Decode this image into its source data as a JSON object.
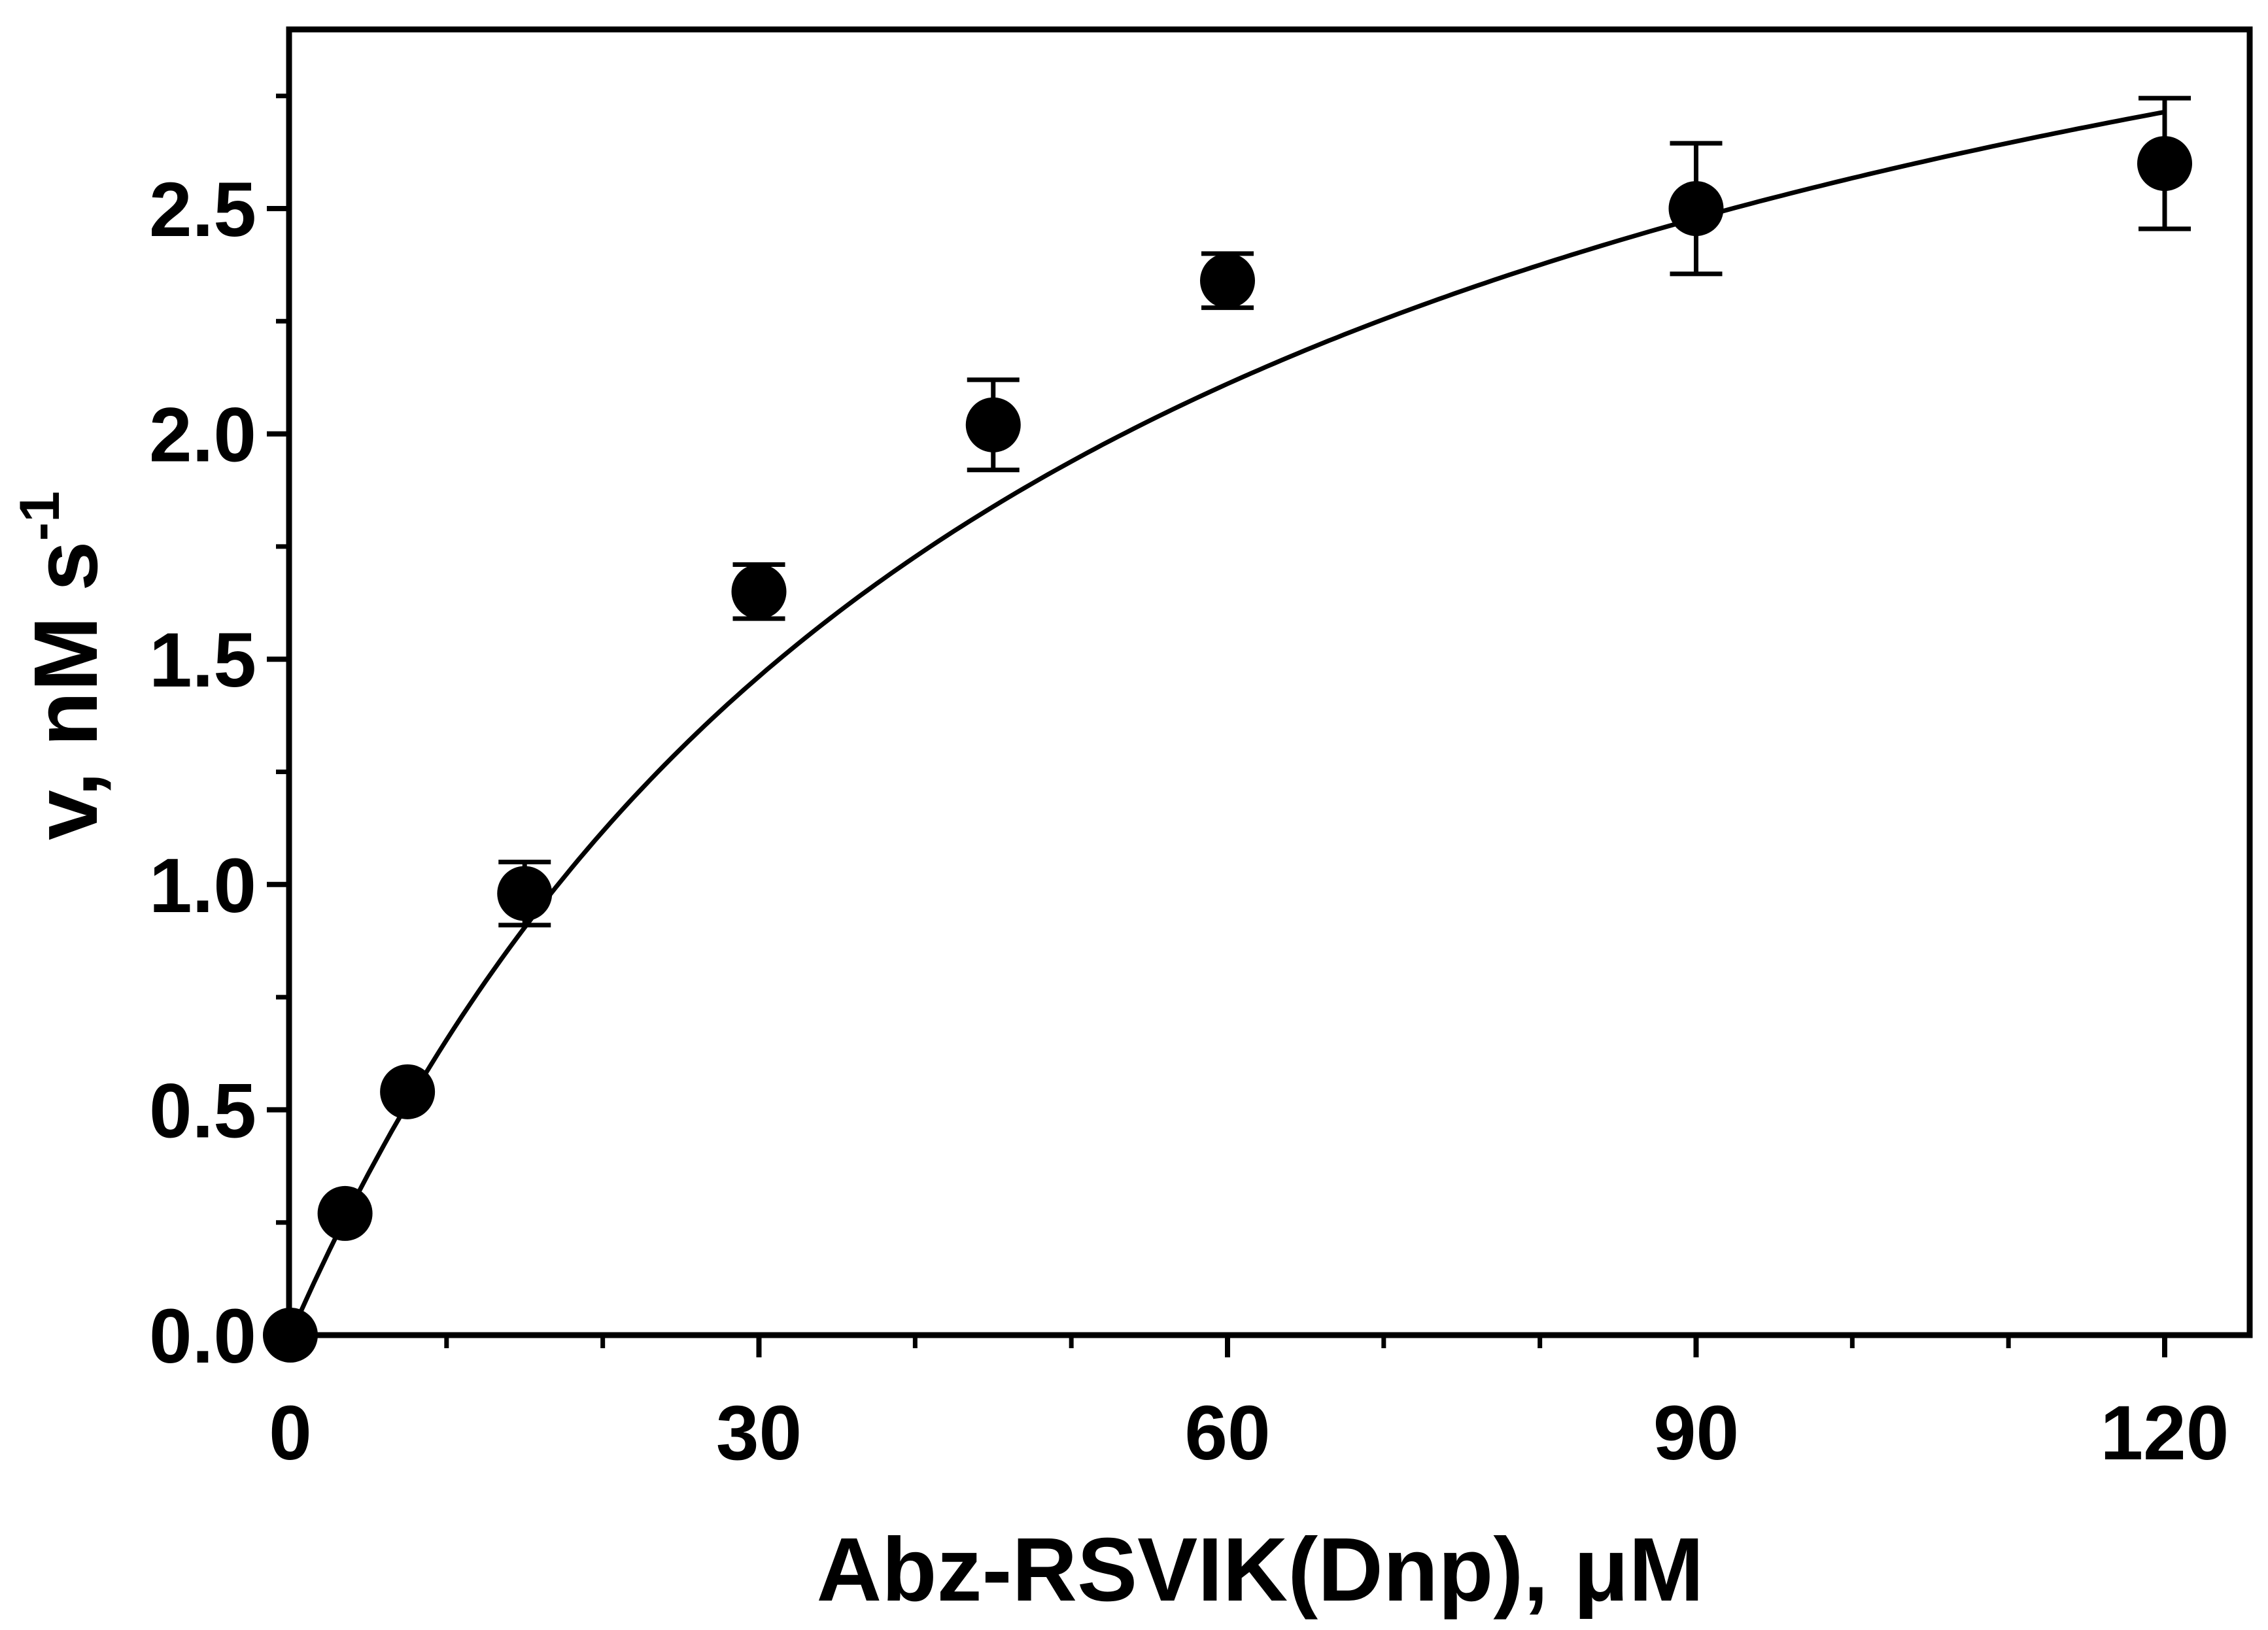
{
  "chart_data": {
    "type": "scatter",
    "title": "",
    "xlabel": "Abz-RSVIK(Dnp), μM",
    "ylabel": {
      "text": "v, nM s",
      "superscript": "-1"
    },
    "xlim": [
      0,
      125
    ],
    "ylim": [
      0,
      2.9
    ],
    "x_ticks": [
      0,
      30,
      60,
      90,
      120
    ],
    "x_tick_labels": [
      "0",
      "30",
      "60",
      "90",
      "120"
    ],
    "x_minor_ticks": [
      10,
      20,
      40,
      50,
      70,
      80,
      100,
      110
    ],
    "y_ticks": [
      0.0,
      0.5,
      1.0,
      1.5,
      2.0,
      2.5
    ],
    "y_tick_labels": [
      "0.0",
      "0.5",
      "1.0",
      "1.5",
      "2.0",
      "2.5"
    ],
    "y_minor_ticks": [
      0.25,
      0.75,
      1.25,
      1.75,
      2.25,
      2.75
    ],
    "grid": false,
    "legend": "none",
    "series": [
      {
        "kind": "points-with-error-bars",
        "x": [
          0,
          3.5,
          7.5,
          15,
          30,
          45,
          60,
          90,
          120
        ],
        "y": [
          0.0,
          0.27,
          0.54,
          0.98,
          1.65,
          2.02,
          2.34,
          2.5,
          2.6
        ],
        "err": [
          0,
          0,
          0,
          0.07,
          0.06,
          0.1,
          0.06,
          0.145,
          0.145
        ]
      },
      {
        "kind": "fit-curve",
        "model": "michaelis-menten",
        "vmax": 3.8,
        "km": 48,
        "x_range": [
          0,
          120
        ]
      }
    ]
  },
  "colors": {
    "background": "#ffffff",
    "ink": "#000000"
  }
}
